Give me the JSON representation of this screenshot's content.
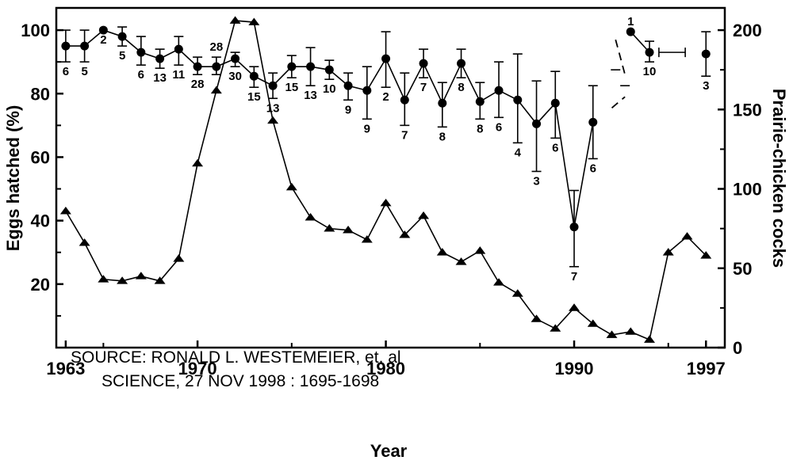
{
  "chart_data": {
    "type": "line",
    "xlabel": "Year",
    "ylabel_left": "Eggs hatched (%)",
    "ylabel_right": "Prairie-chicken cocks",
    "x_ticks": [
      "1963",
      "1970",
      "1980",
      "1990",
      "1997"
    ],
    "y_left_ticks": [
      "20",
      "40",
      "60",
      "80",
      "100"
    ],
    "y_right_ticks": [
      "0",
      "50",
      "100",
      "150",
      "200"
    ],
    "xlim": [
      1962.5,
      1998
    ],
    "ylim_left": [
      0,
      107
    ],
    "ylim_right": [
      0,
      214
    ],
    "grid": false,
    "source_note": [
      "SOURCE: RONALD L. WESTEMEIER, et. al",
      "SCIENCE, 27 NOV 1998 : 1695-1698"
    ],
    "series": [
      {
        "axis": "left",
        "marker": "circle",
        "color": "#000000",
        "points": [
          {
            "x": 1963,
            "y": 95,
            "low": 90,
            "high": 100,
            "n": "6"
          },
          {
            "x": 1964,
            "y": 95,
            "low": 90,
            "high": 100,
            "n": "5"
          },
          {
            "x": 1965,
            "y": 100,
            "low": 100,
            "high": 100,
            "n": "2"
          },
          {
            "x": 1966,
            "y": 98,
            "low": 95,
            "high": 101,
            "n": "5"
          },
          {
            "x": 1967,
            "y": 93,
            "low": 89,
            "high": 98,
            "n": "6"
          },
          {
            "x": 1968,
            "y": 91,
            "low": 88,
            "high": 94,
            "n": "13"
          },
          {
            "x": 1969,
            "y": 94,
            "low": 89,
            "high": 98,
            "n": "11"
          },
          {
            "x": 1970,
            "y": 88.5,
            "low": 86,
            "high": 91.5,
            "n": "28"
          },
          {
            "x": 1971,
            "y": 88.5,
            "low": 86,
            "high": 91.5,
            "n": "28",
            "n_above": true
          },
          {
            "x": 1972,
            "y": 91,
            "low": 88.5,
            "high": 93,
            "n": "30"
          },
          {
            "x": 1973,
            "y": 85.5,
            "low": 82,
            "high": 88.5,
            "n": "15"
          },
          {
            "x": 1974,
            "y": 82.5,
            "low": 78.5,
            "high": 86.5,
            "n": "13"
          },
          {
            "x": 1975,
            "y": 88.5,
            "low": 85,
            "high": 92,
            "n": "15"
          },
          {
            "x": 1976,
            "y": 88.5,
            "low": 82.5,
            "high": 94.5,
            "n": "13"
          },
          {
            "x": 1977,
            "y": 87.5,
            "low": 84.5,
            "high": 90.5,
            "n": "10"
          },
          {
            "x": 1978,
            "y": 82.5,
            "low": 78,
            "high": 86.5,
            "n": "9"
          },
          {
            "x": 1979,
            "y": 81,
            "low": 72,
            "high": 88.5,
            "n": "9"
          },
          {
            "x": 1980,
            "y": 91,
            "low": 82,
            "high": 99.5,
            "n": "2"
          },
          {
            "x": 1981,
            "y": 78,
            "low": 70,
            "high": 86.5,
            "n": "7"
          },
          {
            "x": 1982,
            "y": 89.5,
            "low": 85,
            "high": 94,
            "n": "7"
          },
          {
            "x": 1983,
            "y": 77,
            "low": 69.5,
            "high": 83.5,
            "n": "8"
          },
          {
            "x": 1984,
            "y": 89.5,
            "low": 85,
            "high": 94,
            "n": "8"
          },
          {
            "x": 1985,
            "y": 77.5,
            "low": 72,
            "high": 83.5,
            "n": "8"
          },
          {
            "x": 1986,
            "y": 81,
            "low": 72.5,
            "high": 90,
            "n": "6"
          },
          {
            "x": 1987,
            "y": 78,
            "low": 64.5,
            "high": 92.5,
            "n": "4"
          },
          {
            "x": 1988,
            "y": 70.5,
            "low": 55.5,
            "high": 84,
            "n": "3"
          },
          {
            "x": 1989,
            "y": 77,
            "low": 66,
            "high": 87,
            "n": "6"
          },
          {
            "x": 1990,
            "y": 38,
            "low": 25.5,
            "high": 49.5,
            "n": "7"
          },
          {
            "x": 1991,
            "y": 71,
            "low": 59.5,
            "high": 82.5,
            "n": "6"
          },
          {
            "x": 1993,
            "y": 99.5,
            "low": 99.5,
            "high": 99.5,
            "n": "1",
            "n_above": true
          },
          {
            "x": 1994,
            "y": 93,
            "low": 90,
            "high": 96.5,
            "n": "10"
          },
          {
            "x": 1997,
            "y": 92.5,
            "low": 85.5,
            "high": 99.5,
            "n": "3"
          }
        ]
      },
      {
        "axis": "right",
        "marker": "triangle",
        "color": "#000000",
        "points": [
          {
            "x": 1963,
            "y": 86
          },
          {
            "x": 1964,
            "y": 66
          },
          {
            "x": 1965,
            "y": 43
          },
          {
            "x": 1966,
            "y": 42
          },
          {
            "x": 1967,
            "y": 45
          },
          {
            "x": 1968,
            "y": 42
          },
          {
            "x": 1969,
            "y": 56
          },
          {
            "x": 1970,
            "y": 116
          },
          {
            "x": 1971,
            "y": 162
          },
          {
            "x": 1972,
            "y": 206
          },
          {
            "x": 1973,
            "y": 205
          },
          {
            "x": 1974,
            "y": 143
          },
          {
            "x": 1975,
            "y": 101
          },
          {
            "x": 1976,
            "y": 82
          },
          {
            "x": 1977,
            "y": 75
          },
          {
            "x": 1978,
            "y": 74
          },
          {
            "x": 1979,
            "y": 68
          },
          {
            "x": 1980,
            "y": 91
          },
          {
            "x": 1981,
            "y": 71
          },
          {
            "x": 1982,
            "y": 83
          },
          {
            "x": 1983,
            "y": 60
          },
          {
            "x": 1984,
            "y": 54
          },
          {
            "x": 1985,
            "y": 61
          },
          {
            "x": 1986,
            "y": 41
          },
          {
            "x": 1987,
            "y": 34
          },
          {
            "x": 1988,
            "y": 18
          },
          {
            "x": 1989,
            "y": 12
          },
          {
            "x": 1990,
            "y": 25
          },
          {
            "x": 1991,
            "y": 15
          },
          {
            "x": 1992,
            "y": 8
          },
          {
            "x": 1993,
            "y": 10
          },
          {
            "x": 1994,
            "y": 5
          },
          {
            "x": 1995,
            "y": 60
          },
          {
            "x": 1996,
            "y": 70
          },
          {
            "x": 1997,
            "y": 58
          }
        ]
      }
    ],
    "dashed_links": [
      {
        "from": [
          1992,
          75.5
        ],
        "to": [
          1992.7,
          79
        ]
      },
      {
        "from": [
          1992.2,
          97
        ],
        "to": [
          1992.7,
          86
        ]
      }
    ],
    "free_error_bars": [
      {
        "x": 1992.7,
        "y": 82.5,
        "half_height": 0.9
      },
      {
        "x": 1992.2,
        "y": 87.5,
        "half_height": 0.9
      },
      {
        "x": 1995.2,
        "y": 93,
        "half_width": 0.7
      }
    ]
  }
}
